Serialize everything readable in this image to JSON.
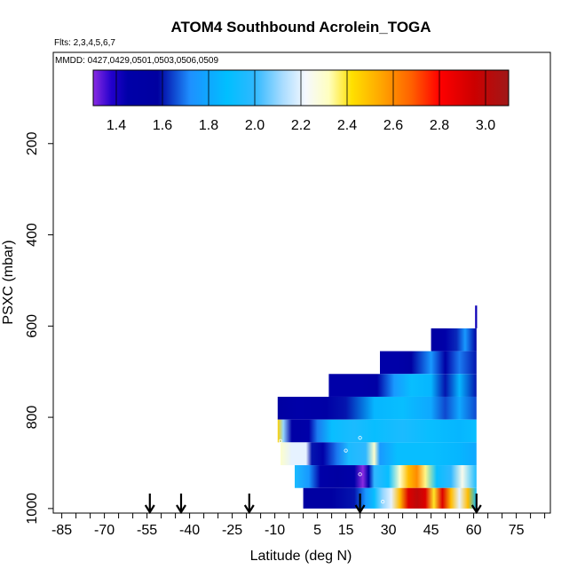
{
  "chart_data": {
    "type": "heatmap",
    "title": "ATOM4 Southbound Acrolein_TOGA",
    "flights_label": "Flts: 2,3,4,5,6,7",
    "dates_label": "MMDD: 0427,0429,0501,0503,0506,0509",
    "xlabel": "Latitude (deg N)",
    "ylabel": "PSXC (mbar)",
    "xlim": [
      -88,
      87
    ],
    "ylim": [
      1010,
      0
    ],
    "x_ticks": [
      -85,
      -70,
      -55,
      -40,
      -25,
      -10,
      5,
      15,
      30,
      45,
      60,
      75
    ],
    "x_tick_labels": [
      "-85",
      "-70",
      "-55",
      "-40",
      "-25",
      "-10",
      "5",
      "15",
      "30",
      "45",
      "60",
      "75"
    ],
    "x_minor_step": 5,
    "y_ticks": [
      200,
      400,
      600,
      800,
      1000
    ],
    "y_tick_labels": [
      "200",
      "400",
      "600",
      "800",
      "1000"
    ],
    "colorbar": {
      "min": 1.3,
      "max": 3.1,
      "ticks": [
        1.4,
        1.6,
        1.8,
        2.0,
        2.2,
        2.4,
        2.6,
        2.8,
        3.0
      ],
      "tick_labels": [
        "1.4",
        "1.6",
        "1.8",
        "2.0",
        "2.2",
        "2.4",
        "2.6",
        "2.8",
        "3.0"
      ],
      "colormap": [
        [
          1.3,
          "#8a2be2"
        ],
        [
          1.38,
          "#2200cc"
        ],
        [
          1.45,
          "#0000a8"
        ],
        [
          1.58,
          "#0000a0"
        ],
        [
          1.72,
          "#1e90ff"
        ],
        [
          1.88,
          "#00bfff"
        ],
        [
          2.0,
          "#2fb8ff"
        ],
        [
          2.12,
          "#a8dcff"
        ],
        [
          2.22,
          "#f5f8ff"
        ],
        [
          2.32,
          "#ffffc0"
        ],
        [
          2.42,
          "#ffe000"
        ],
        [
          2.55,
          "#ffa500"
        ],
        [
          2.68,
          "#ff6000"
        ],
        [
          2.8,
          "#ff0000"
        ],
        [
          2.95,
          "#cc0000"
        ],
        [
          3.1,
          "#a01818"
        ]
      ]
    },
    "flight_markers_lat": [
      -54,
      -43,
      -19,
      20,
      61
    ],
    "rows": [
      {
        "p_top": 555,
        "p_bot": 605,
        "lat_start": 60.5,
        "lat_end": 61.2,
        "stops": [
          [
            60.5,
            1.4
          ],
          [
            61.2,
            1.45
          ]
        ]
      },
      {
        "p_top": 605,
        "p_bot": 655,
        "lat_start": 45,
        "lat_end": 61,
        "stops": [
          [
            45,
            1.55
          ],
          [
            50,
            1.45
          ],
          [
            54,
            1.62
          ],
          [
            57,
            1.75
          ],
          [
            61,
            1.55
          ]
        ]
      },
      {
        "p_top": 655,
        "p_bot": 705,
        "lat_start": 27,
        "lat_end": 61,
        "stops": [
          [
            27,
            1.45
          ],
          [
            33,
            1.45
          ],
          [
            38,
            1.55
          ],
          [
            45,
            1.75
          ],
          [
            50,
            1.5
          ],
          [
            55,
            1.7
          ],
          [
            61,
            1.6
          ]
        ]
      },
      {
        "p_top": 705,
        "p_bot": 755,
        "lat_start": 9,
        "lat_end": 61,
        "stops": [
          [
            9,
            1.45
          ],
          [
            20,
            1.45
          ],
          [
            26,
            1.5
          ],
          [
            32,
            1.75
          ],
          [
            38,
            1.9
          ],
          [
            45,
            1.85
          ],
          [
            50,
            1.6
          ],
          [
            55,
            1.85
          ],
          [
            61,
            1.6
          ]
        ]
      },
      {
        "p_top": 755,
        "p_bot": 805,
        "lat_start": -9,
        "lat_end": 61,
        "stops": [
          [
            -9,
            1.55
          ],
          [
            -2,
            1.45
          ],
          [
            8,
            1.5
          ],
          [
            15,
            1.6
          ],
          [
            25,
            1.85
          ],
          [
            35,
            1.9
          ],
          [
            45,
            1.8
          ],
          [
            50,
            1.65
          ],
          [
            55,
            1.8
          ],
          [
            61,
            1.65
          ]
        ]
      },
      {
        "p_top": 805,
        "p_bot": 855,
        "lat_start": -9,
        "lat_end": 61,
        "stops": [
          [
            -9,
            2.45
          ],
          [
            -7,
            2.1
          ],
          [
            -4,
            1.5
          ],
          [
            2,
            1.45
          ],
          [
            5,
            1.7
          ],
          [
            10,
            1.9
          ],
          [
            18,
            1.95
          ],
          [
            25,
            1.9
          ],
          [
            35,
            1.95
          ],
          [
            45,
            1.9
          ],
          [
            55,
            1.85
          ],
          [
            61,
            1.9
          ]
        ]
      },
      {
        "p_top": 855,
        "p_bot": 905,
        "lat_start": -8,
        "lat_end": 61,
        "stops": [
          [
            -8,
            2.3
          ],
          [
            -4,
            2.2
          ],
          [
            1,
            2.2
          ],
          [
            3,
            1.6
          ],
          [
            7,
            1.45
          ],
          [
            12,
            1.7
          ],
          [
            16,
            1.95
          ],
          [
            22,
            2.0
          ],
          [
            25,
            2.3
          ],
          [
            27,
            1.75
          ],
          [
            33,
            1.9
          ],
          [
            45,
            1.9
          ],
          [
            55,
            1.85
          ],
          [
            61,
            1.8
          ]
        ]
      },
      {
        "p_top": 905,
        "p_bot": 955,
        "lat_start": -3,
        "lat_end": 61,
        "stops": [
          [
            -3,
            1.95
          ],
          [
            2,
            1.75
          ],
          [
            6,
            1.45
          ],
          [
            12,
            1.55
          ],
          [
            18,
            1.45
          ],
          [
            21,
            1.3
          ],
          [
            23,
            1.45
          ],
          [
            25,
            2.0
          ],
          [
            30,
            1.9
          ],
          [
            34,
            2.3
          ],
          [
            37,
            2.5
          ],
          [
            40,
            2.6
          ],
          [
            43,
            2.35
          ],
          [
            47,
            1.9
          ],
          [
            52,
            2.0
          ],
          [
            56,
            2.25
          ],
          [
            61,
            1.95
          ]
        ]
      },
      {
        "p_top": 955,
        "p_bot": 1000,
        "lat_start": 0,
        "lat_end": 61,
        "stops": [
          [
            0,
            1.55
          ],
          [
            10,
            1.55
          ],
          [
            18,
            1.6
          ],
          [
            22,
            1.75
          ],
          [
            25,
            1.9
          ],
          [
            28,
            2.1
          ],
          [
            31,
            2.2
          ],
          [
            34,
            2.5
          ],
          [
            37,
            2.9
          ],
          [
            40,
            3.0
          ],
          [
            43,
            2.9
          ],
          [
            46,
            2.4
          ],
          [
            49,
            2.9
          ],
          [
            52,
            2.5
          ],
          [
            55,
            2.2
          ],
          [
            58,
            2.5
          ],
          [
            61,
            1.9
          ]
        ]
      }
    ],
    "sample_points": [
      {
        "lat": -8,
        "p": 852
      },
      {
        "lat": 15,
        "p": 873
      },
      {
        "lat": 20,
        "p": 845
      },
      {
        "lat": 20,
        "p": 925
      },
      {
        "lat": 28,
        "p": 985
      },
      {
        "lat": 44,
        "p": 1005
      }
    ]
  }
}
